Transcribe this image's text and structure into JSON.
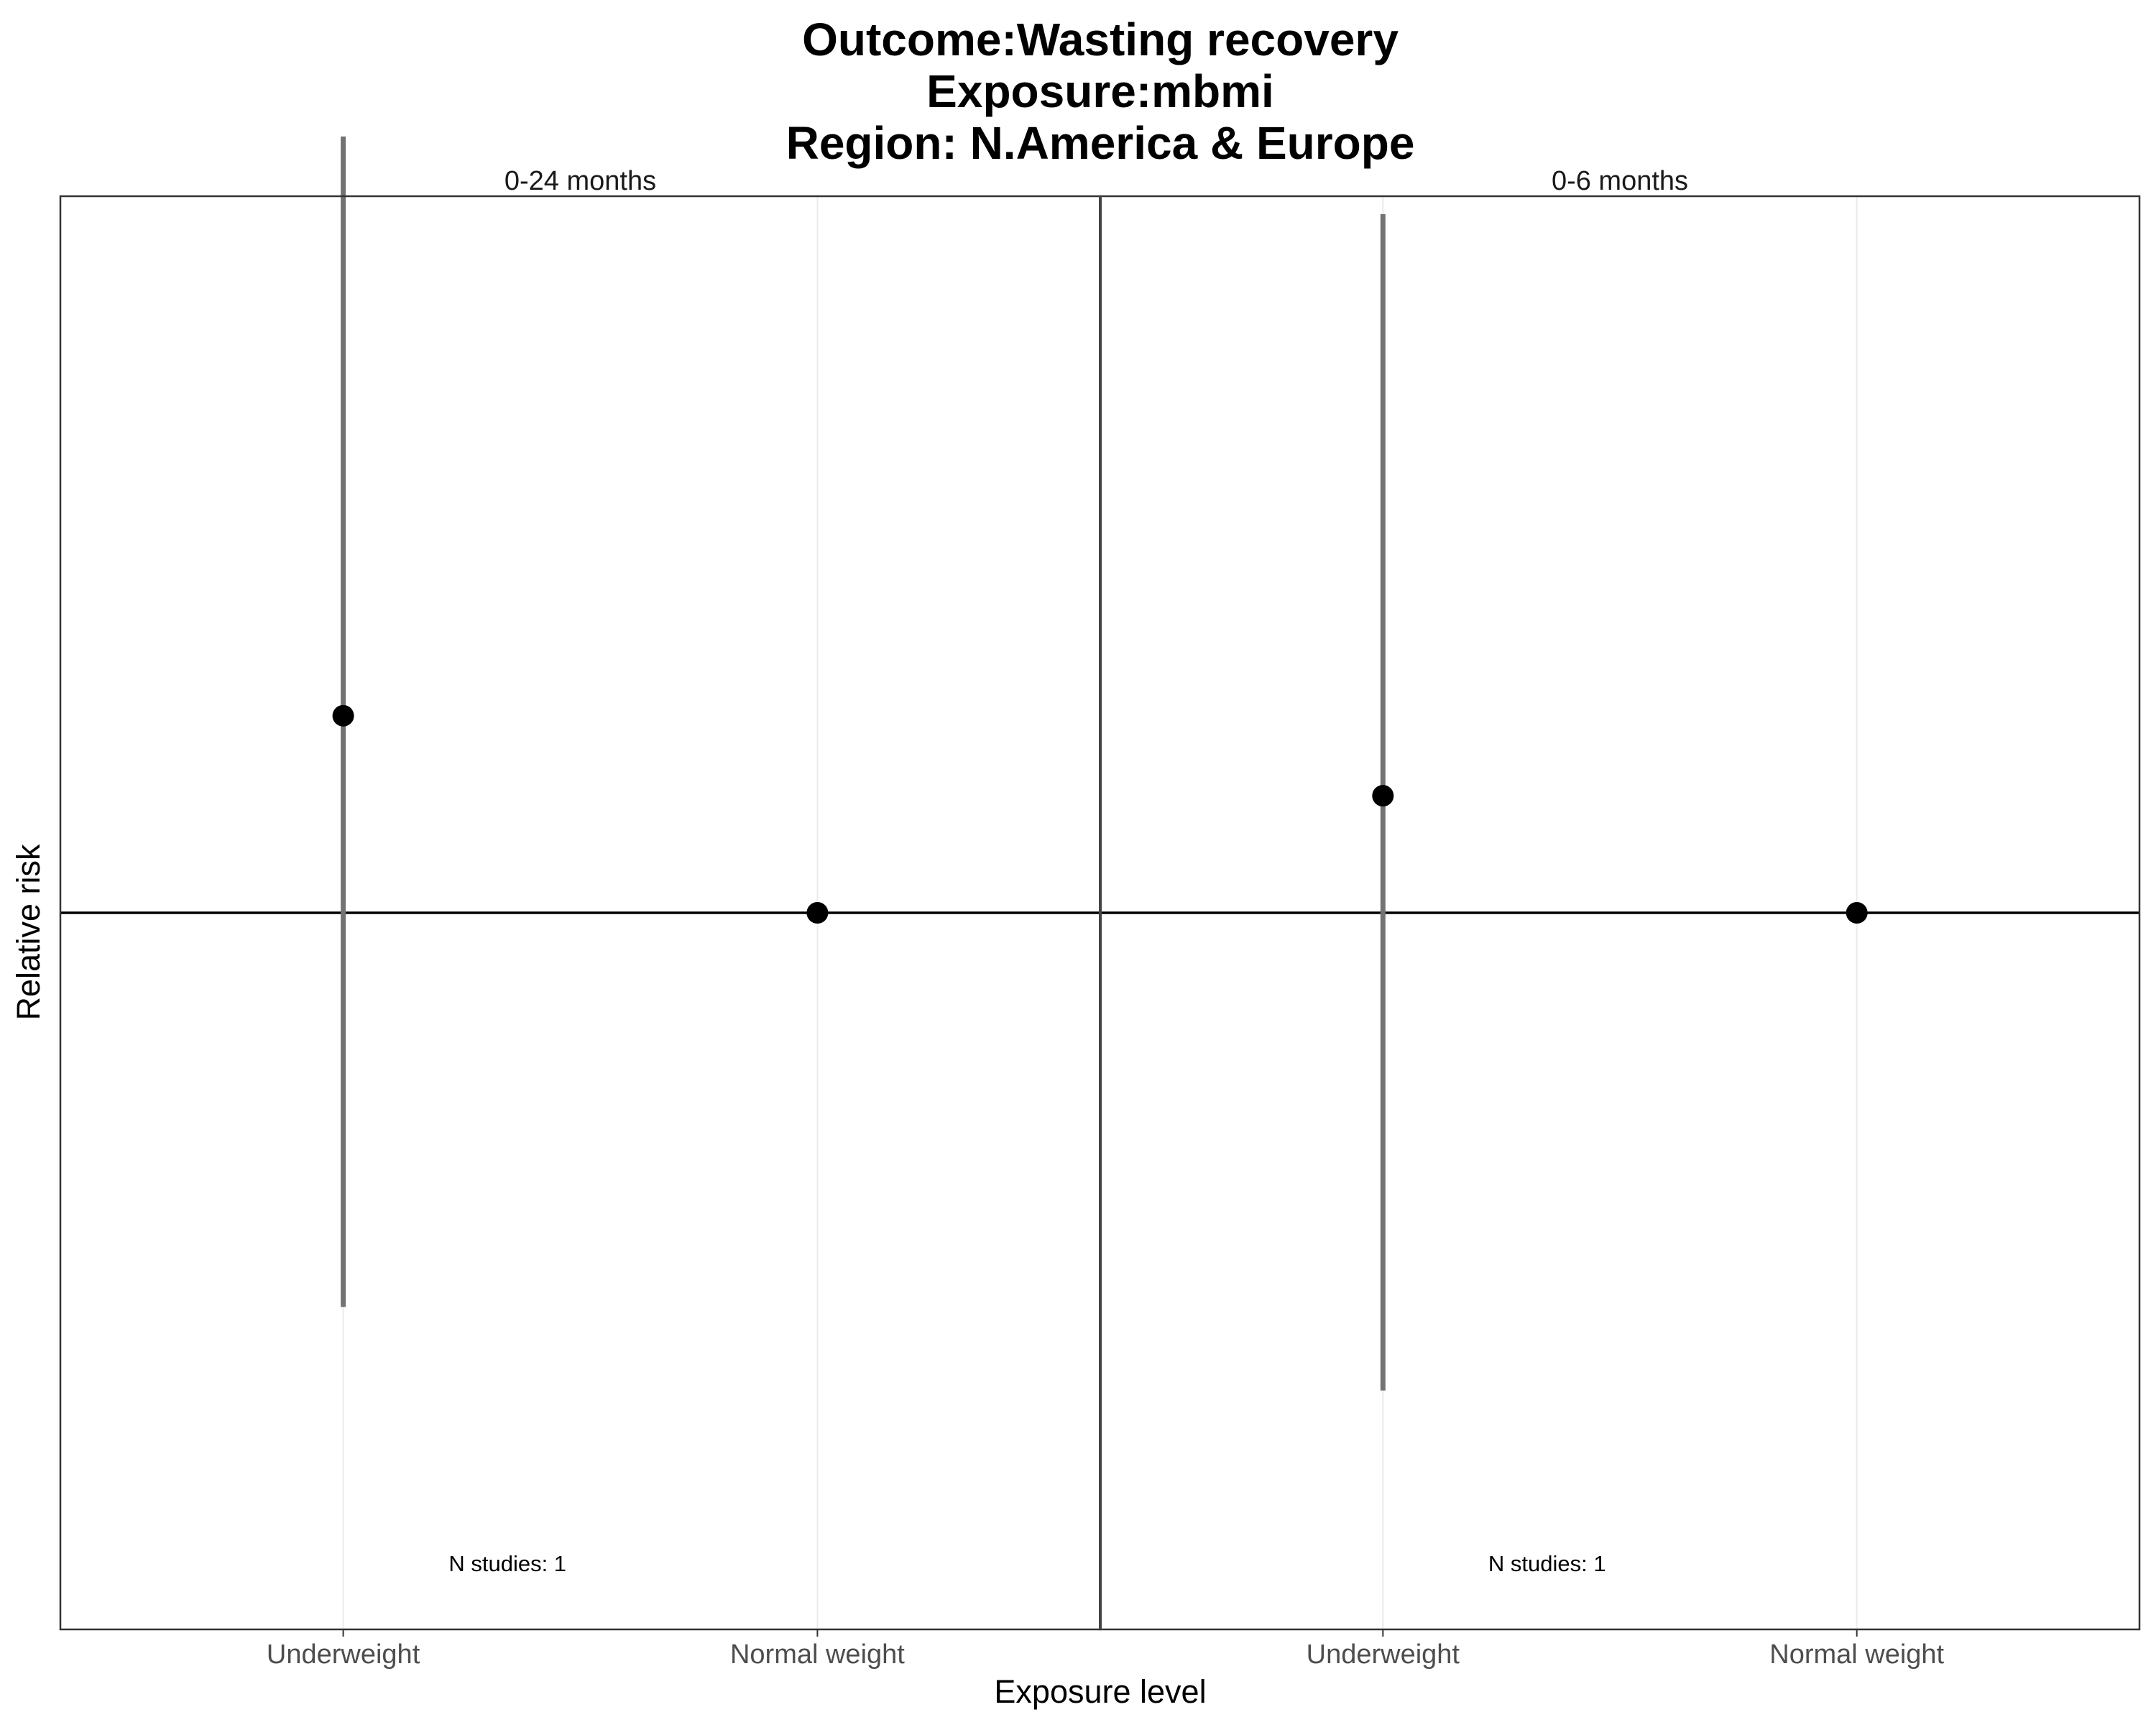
{
  "chart_data": {
    "type": "scatter",
    "title_lines": [
      "Outcome:Wasting recovery",
      "Exposure:mbmi",
      "Region: N.America & Europe"
    ],
    "xlabel": "Exposure level",
    "ylabel": "Relative risk",
    "categories": [
      "Underweight",
      "Normal weight"
    ],
    "reference_line": 1.0,
    "grid": true,
    "ylim": [
      0.4,
      1.6
    ],
    "panels": [
      {
        "label": "0-24 months",
        "annotation": "N studies: 1",
        "points": [
          {
            "category": "Underweight",
            "estimate": 1.165,
            "lower": 0.67,
            "upper": 1.65
          },
          {
            "category": "Normal weight",
            "estimate": 1.0
          }
        ]
      },
      {
        "label": "0-6 months",
        "annotation": "N studies: 1",
        "points": [
          {
            "category": "Underweight",
            "estimate": 1.098,
            "lower": 0.6,
            "upper": 1.585
          },
          {
            "category": "Normal weight",
            "estimate": 1.0
          }
        ]
      }
    ]
  },
  "colors": {
    "point": "#000000",
    "errorbar": "#737373",
    "reference_line": "#000000",
    "gridline": "#ebebeb",
    "panel_border": "#333333"
  }
}
